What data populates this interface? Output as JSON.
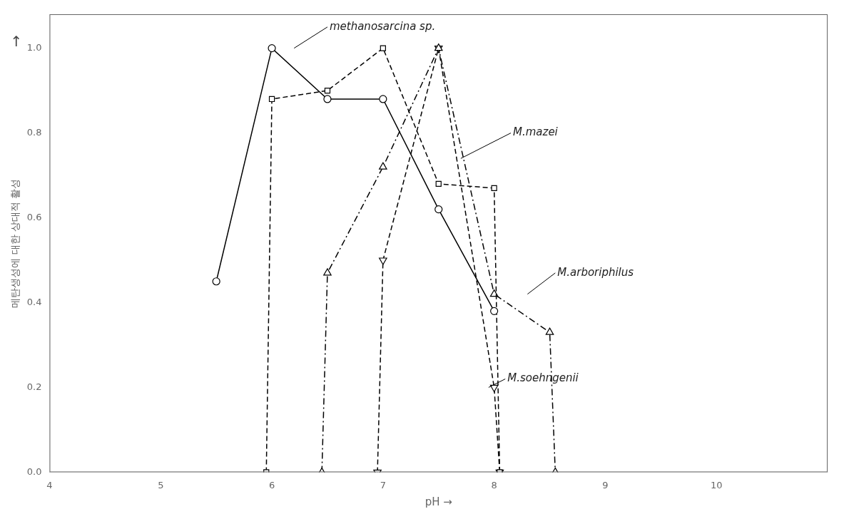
{
  "chart_data": {
    "type": "line",
    "xlabel": "pH →",
    "ylabel": "메탄생성에 대한 상대적 활성",
    "xlim": [
      4,
      11
    ],
    "ylim": [
      0,
      1.08
    ],
    "xticks": [
      4,
      5,
      6,
      7,
      8,
      9,
      10
    ],
    "yticks": [
      {
        "value": 0,
        "label": "0.0"
      },
      0.2,
      0.4,
      0.6,
      0.8,
      {
        "value": 1.0,
        "label": "1.0"
      }
    ],
    "grid": false,
    "series": [
      {
        "name": "methanosarcina sp.",
        "type": "line",
        "color": "#000000",
        "marker": "circle",
        "line_style": "solid",
        "x": [
          5.5,
          6.0,
          6.5,
          7.0,
          7.5,
          8.0
        ],
        "values": [
          0.45,
          1.0,
          0.88,
          0.88,
          0.62,
          0.38
        ]
      },
      {
        "name": "M.mazei",
        "type": "line",
        "color": "#000000",
        "marker": "square",
        "line_style": "dashed",
        "x": [
          5.95,
          6.0,
          6.5,
          7.0,
          7.5,
          8.0,
          8.05
        ],
        "values": [
          0.0,
          0.88,
          0.9,
          1.0,
          0.68,
          0.67,
          0.0
        ]
      },
      {
        "name": "M.arboriphilus",
        "type": "line",
        "color": "#000000",
        "marker": "triangle",
        "line_style": "dashdot",
        "x": [
          6.45,
          6.5,
          7.0,
          7.5,
          8.0,
          8.5,
          8.55
        ],
        "values": [
          0.0,
          0.47,
          0.72,
          1.0,
          0.42,
          0.33,
          0.0
        ]
      },
      {
        "name": "M.soehngenii",
        "type": "line",
        "color": "#000000",
        "marker": "triangle_down",
        "line_style": "dashed",
        "x": [
          6.95,
          7.0,
          7.5,
          8.0,
          8.05
        ],
        "values": [
          0.0,
          0.5,
          1.0,
          0.2,
          0.0
        ]
      }
    ],
    "annotations": [
      {
        "text": "methanosarcina sp.",
        "xy": [
          6.2,
          1.0
        ],
        "xytext": [
          6.5,
          1.05
        ]
      },
      {
        "text": "M.mazei",
        "xy": [
          7.7,
          0.74
        ],
        "xytext": [
          8.15,
          0.8
        ]
      },
      {
        "text": "M.arboriphilus",
        "xy": [
          8.3,
          0.42
        ],
        "xytext": [
          8.55,
          0.47
        ]
      },
      {
        "text": "M.soehngenii",
        "xy": [
          7.95,
          0.2
        ],
        "xytext": [
          8.1,
          0.22
        ]
      },
      {
        "text": "↑"
      }
    ]
  }
}
